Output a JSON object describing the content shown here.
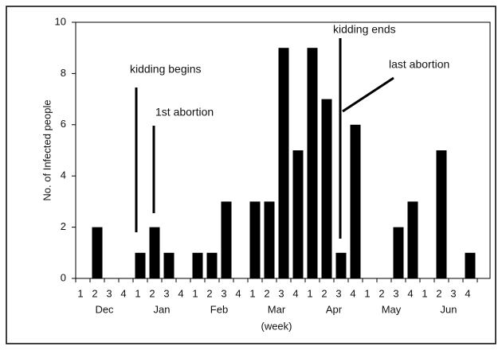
{
  "chart_data": {
    "type": "bar",
    "y_label": "No. of Infected people",
    "x_label": "(week)",
    "categories": [
      "1",
      "2",
      "3",
      "4",
      "1",
      "2",
      "3",
      "4",
      "1",
      "2",
      "3",
      "4",
      "1",
      "2",
      "3",
      "4",
      "1",
      "2",
      "3",
      "4",
      "1",
      "2",
      "3",
      "4",
      "1",
      "2",
      "3",
      "4"
    ],
    "months": [
      "Dec",
      "Jan",
      "Feb",
      "Mar",
      "Apr",
      "May",
      "Jun"
    ],
    "values": [
      0,
      2,
      0,
      0,
      1,
      2,
      1,
      0,
      1,
      1,
      3,
      0,
      3,
      3,
      9,
      5,
      9,
      7,
      1,
      6,
      0,
      0,
      2,
      3,
      0,
      5,
      0,
      1
    ],
    "color": "#000000",
    "ylim": [
      0,
      10
    ],
    "yticks": [
      0,
      2,
      4,
      6,
      8,
      10
    ],
    "annotations": [
      "kidding begins",
      "1st abortion",
      "kidding ends",
      "last abortion"
    ]
  }
}
